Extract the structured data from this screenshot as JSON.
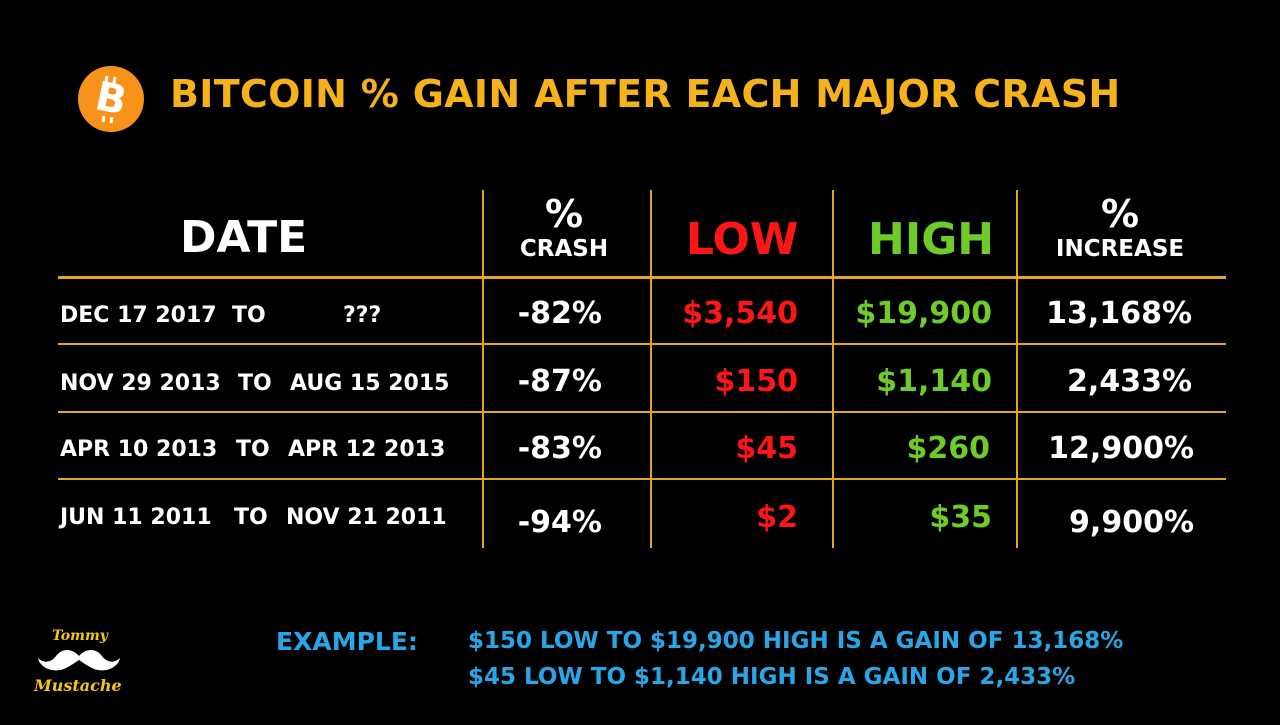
{
  "title": "BITCOIN % GAIN AFTER EACH MAJOR CRASH",
  "colors": {
    "background": "#000000",
    "title": "#f5b21a",
    "rules": "#e3a526",
    "low": "#ff1515",
    "high": "#6fcc28",
    "example": "#27a7e8",
    "logo": "#f7931a"
  },
  "logo_icon": "bitcoin-icon",
  "chart_data": {
    "type": "table",
    "title": "BITCOIN % GAIN AFTER EACH MAJOR CRASH",
    "headers": {
      "date": "DATE",
      "crash_pct": "%",
      "crash_label": "CRASH",
      "low": "LOW",
      "high": "HIGH",
      "increase_pct": "%",
      "increase_label": "INCREASE"
    },
    "rows": [
      {
        "from": "DEC 17 2017",
        "to_word": "TO",
        "to": "???",
        "crash": "-82%",
        "low": "$3,540",
        "high": "$19,900",
        "increase": "13,168%"
      },
      {
        "from": "NOV 29 2013",
        "to_word": "TO",
        "to": "AUG 15 2015",
        "crash": "-87%",
        "low": "$150",
        "high": "$1,140",
        "increase": "2,433%"
      },
      {
        "from": "APR 10 2013",
        "to_word": "TO",
        "to": "APR 12 2013",
        "crash": "-83%",
        "low": "$45",
        "high": "$260",
        "increase": "12,900%"
      },
      {
        "from": "JUN 11 2011",
        "to_word": "TO",
        "to": "NOV 21 2011",
        "crash": "-94%",
        "low": "$2",
        "high": "$35",
        "increase": "9,900%"
      }
    ]
  },
  "example": {
    "label": "EXAMPLE:",
    "lines": [
      "$150 LOW TO $19,900 HIGH IS A GAIN OF 13,168%",
      "$45 LOW TO $1,140 HIGH IS A GAIN OF 2,433%"
    ]
  },
  "brand": {
    "top": "Tommy",
    "bottom": "Mustache",
    "icon": "mustache-icon"
  }
}
